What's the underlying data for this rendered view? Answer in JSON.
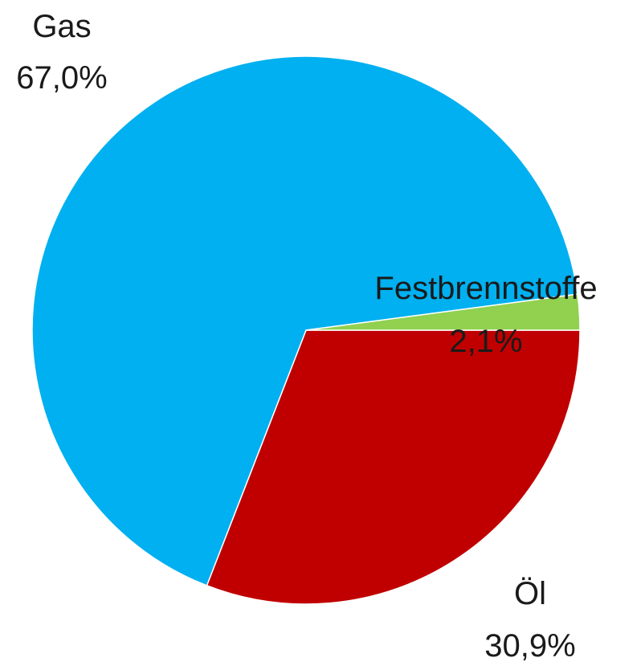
{
  "chart_data": {
    "type": "pie",
    "slices": [
      {
        "name": "Gas",
        "value": 67.0,
        "label": "67,0%",
        "color": "#00b0f0"
      },
      {
        "name": "Festbrennstoffe",
        "value": 2.1,
        "label": "2,1%",
        "color": "#92d050"
      },
      {
        "name": "Öl",
        "value": 30.9,
        "label": "30,9%",
        "color": "#c00000"
      }
    ],
    "legend": "none"
  }
}
